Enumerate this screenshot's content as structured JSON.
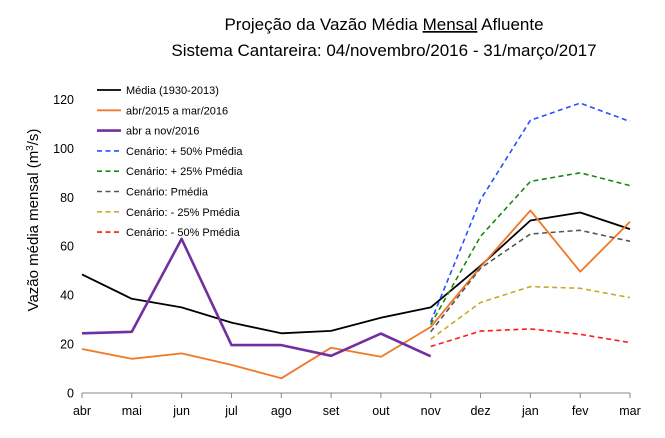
{
  "chart_data": {
    "type": "line",
    "title_parts": [
      "Projeção da Vazão Média ",
      "Mensal",
      " Afluente"
    ],
    "subtitle": "Sistema Cantareira: 04/novembro/2016 - 31/março/2017",
    "ylabel_main": "Vazão média mensal (m",
    "ylabel_sup": "3",
    "ylabel_tail": "/s)",
    "xlabel": "",
    "ylim": [
      0,
      130
    ],
    "yticks": [
      0,
      20,
      40,
      60,
      80,
      100,
      120
    ],
    "categories": [
      "abr",
      "mai",
      "jun",
      "jul",
      "ago",
      "set",
      "out",
      "nov",
      "dez",
      "jan",
      "fev",
      "mar"
    ],
    "grid": false,
    "legend_position": "top-left",
    "series": [
      {
        "name": "Média (1930-2013)",
        "color": "#000000",
        "dash": "solid",
        "width": 1.8,
        "values": [
          48.5,
          38.5,
          35.0,
          28.8,
          24.4,
          25.4,
          30.8,
          35.0,
          52.0,
          70.5,
          73.8,
          67.0
        ]
      },
      {
        "name": "abr/2015 a mar/2016",
        "color": "#f07828",
        "dash": "solid",
        "width": 1.8,
        "values": [
          18.0,
          14.0,
          16.2,
          11.5,
          6.0,
          18.5,
          14.8,
          27.0,
          51.5,
          74.6,
          49.6,
          70.0
        ]
      },
      {
        "name": "abr a nov/2016",
        "color": "#7030a0",
        "dash": "solid",
        "width": 2.6,
        "values": [
          24.4,
          25.0,
          63.0,
          19.6,
          19.6,
          15.2,
          24.3,
          15.0,
          null,
          null,
          null,
          null
        ]
      },
      {
        "name": "Cenário: + 50% Pmédia",
        "color": "#2450ff",
        "dash": "dash",
        "width": 1.6,
        "values": [
          null,
          null,
          null,
          null,
          null,
          null,
          null,
          29.0,
          79.0,
          111.5,
          118.5,
          111.0
        ]
      },
      {
        "name": "Cenário: + 25% Pmédia",
        "color": "#138a13",
        "dash": "dash",
        "width": 1.6,
        "values": [
          null,
          null,
          null,
          null,
          null,
          null,
          null,
          28.0,
          64.0,
          86.5,
          90.0,
          84.8
        ]
      },
      {
        "name": "Cenário: Pmédia",
        "color": "#555555",
        "dash": "dash",
        "width": 1.6,
        "values": [
          null,
          null,
          null,
          null,
          null,
          null,
          null,
          25.0,
          51.0,
          65.0,
          66.5,
          62.0
        ]
      },
      {
        "name": "Cenário: - 25% Pmédia",
        "color": "#c8a92a",
        "dash": "dash",
        "width": 1.6,
        "values": [
          null,
          null,
          null,
          null,
          null,
          null,
          null,
          22.0,
          37.0,
          43.5,
          42.8,
          39.0
        ]
      },
      {
        "name": "Cenário: - 50% Pmédia",
        "color": "#ff1a1a",
        "dash": "dash",
        "width": 1.6,
        "values": [
          null,
          null,
          null,
          null,
          null,
          null,
          null,
          19.0,
          25.3,
          26.2,
          24.0,
          20.6
        ]
      }
    ]
  }
}
